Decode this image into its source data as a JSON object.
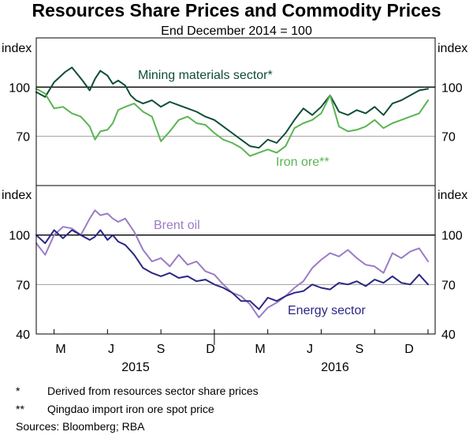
{
  "title": "Resources Share Prices and Commodity Prices",
  "subtitle": "End December 2014 = 100",
  "footnotes": [
    {
      "marker": "*",
      "text": "Derived from resources sector share prices"
    },
    {
      "marker": "**",
      "text": "Qingdao import iron ore spot price"
    }
  ],
  "sources": "Sources:  Bloomberg; RBA",
  "colors": {
    "mining": "#0f4d36",
    "iron": "#5ab552",
    "brent": "#9b7cc4",
    "energy": "#2b2783",
    "frame": "#000000",
    "grid": "#a0a0a0"
  },
  "chart_data": [
    {
      "type": "line",
      "panel": "top",
      "axis_label_left": "index",
      "axis_label_right": "index",
      "ylim": [
        40,
        130
      ],
      "yticks": [
        70,
        100
      ],
      "reference_line": 100,
      "x_unit": "months since end Dec 2014",
      "xlim": [
        2,
        24.4
      ],
      "series": [
        {
          "name": "Mining materials sector*",
          "color_key": "mining",
          "x": [
            2.0,
            2.5,
            3.0,
            3.3,
            3.6,
            4.0,
            4.3,
            4.6,
            5.0,
            5.3,
            5.6,
            6.0,
            6.3,
            6.6,
            7.0,
            7.3,
            7.6,
            8.0,
            8.5,
            9.0,
            9.5,
            10.0,
            10.5,
            11.0,
            11.5,
            12.0,
            12.5,
            13.0,
            13.5,
            14.0,
            14.5,
            15.0,
            15.5,
            16.0,
            16.5,
            17.0,
            17.5,
            18.0,
            18.5,
            19.0,
            19.5,
            20.0,
            20.5,
            21.0,
            21.5,
            22.0,
            22.5,
            23.0,
            23.5,
            24.0
          ],
          "values": [
            97,
            94,
            103,
            106,
            109,
            112,
            108,
            104,
            98,
            105,
            110,
            107,
            102,
            104,
            101,
            95,
            92,
            90,
            92,
            88,
            91,
            89,
            87,
            85,
            82,
            80,
            76,
            72,
            68,
            64,
            63,
            68,
            66,
            72,
            80,
            87,
            83,
            88,
            95,
            85,
            83,
            86,
            84,
            88,
            83,
            90,
            92,
            95,
            98,
            99
          ]
        },
        {
          "name": "Iron ore**",
          "color_key": "iron",
          "x": [
            2.0,
            2.5,
            3.0,
            3.5,
            4.0,
            4.5,
            5.0,
            5.3,
            5.6,
            6.0,
            6.3,
            6.6,
            7.0,
            7.5,
            8.0,
            8.5,
            9.0,
            9.5,
            10.0,
            10.5,
            11.0,
            11.5,
            12.0,
            12.5,
            13.0,
            13.5,
            14.0,
            14.5,
            15.0,
            15.5,
            16.0,
            16.5,
            17.0,
            17.5,
            18.0,
            18.5,
            19.0,
            19.5,
            20.0,
            20.5,
            21.0,
            21.5,
            22.0,
            22.5,
            23.0,
            23.5,
            24.0
          ],
          "values": [
            99,
            96,
            87,
            88,
            84,
            82,
            76,
            68,
            73,
            74,
            78,
            86,
            88,
            90,
            85,
            82,
            67,
            73,
            80,
            82,
            78,
            77,
            72,
            68,
            66,
            63,
            58,
            60,
            62,
            60,
            64,
            75,
            78,
            80,
            84,
            95,
            76,
            73,
            74,
            76,
            80,
            75,
            78,
            80,
            82,
            84,
            92
          ]
        }
      ],
      "annotations": [
        {
          "text": "Mining materials sector*",
          "series": "Mining materials sector*"
        },
        {
          "text": "Iron ore**",
          "series": "Iron ore**"
        }
      ]
    },
    {
      "type": "line",
      "panel": "bottom",
      "axis_label_left": "index",
      "axis_label_right": "index",
      "ylim": [
        40,
        130
      ],
      "yticks": [
        40,
        70,
        100
      ],
      "reference_line": 100,
      "x_unit": "months since end Dec 2014",
      "xlim": [
        2,
        24.4
      ],
      "xticks": [
        "M",
        "J",
        "S",
        "D",
        "M",
        "J",
        "S",
        "D"
      ],
      "year_labels": [
        "2015",
        "2016"
      ],
      "series": [
        {
          "name": "Brent oil",
          "color_key": "brent",
          "x": [
            2.0,
            2.5,
            3.0,
            3.5,
            4.0,
            4.5,
            5.0,
            5.3,
            5.6,
            6.0,
            6.3,
            6.6,
            7.0,
            7.5,
            8.0,
            8.5,
            9.0,
            9.5,
            10.0,
            10.5,
            11.0,
            11.5,
            12.0,
            12.5,
            13.0,
            13.5,
            14.0,
            14.5,
            15.0,
            15.5,
            16.0,
            16.5,
            17.0,
            17.5,
            18.0,
            18.5,
            19.0,
            19.5,
            20.0,
            20.5,
            21.0,
            21.5,
            22.0,
            22.5,
            23.0,
            23.5,
            24.0
          ],
          "values": [
            95,
            88,
            100,
            105,
            104,
            100,
            110,
            115,
            112,
            113,
            110,
            108,
            110,
            102,
            91,
            84,
            86,
            81,
            88,
            82,
            84,
            78,
            76,
            70,
            65,
            63,
            58,
            50,
            56,
            59,
            63,
            68,
            72,
            80,
            85,
            89,
            87,
            91,
            86,
            82,
            81,
            77,
            89,
            86,
            90,
            92,
            84
          ]
        },
        {
          "name": "Energy sector",
          "color_key": "energy",
          "x": [
            2.0,
            2.5,
            3.0,
            3.5,
            4.0,
            4.5,
            5.0,
            5.3,
            5.6,
            6.0,
            6.3,
            6.6,
            7.0,
            7.5,
            8.0,
            8.5,
            9.0,
            9.5,
            10.0,
            10.5,
            11.0,
            11.5,
            12.0,
            12.5,
            13.0,
            13.5,
            14.0,
            14.5,
            15.0,
            15.5,
            16.0,
            16.5,
            17.0,
            17.5,
            18.0,
            18.5,
            19.0,
            19.5,
            20.0,
            20.5,
            21.0,
            21.5,
            22.0,
            22.5,
            23.0,
            23.5,
            24.0
          ],
          "values": [
            100,
            95,
            103,
            98,
            103,
            100,
            97,
            99,
            103,
            97,
            100,
            96,
            94,
            88,
            80,
            77,
            75,
            77,
            74,
            75,
            72,
            73,
            70,
            68,
            65,
            60,
            60,
            55,
            62,
            60,
            63,
            65,
            66,
            70,
            68,
            67,
            71,
            70,
            72,
            69,
            73,
            71,
            75,
            71,
            70,
            76,
            70
          ]
        }
      ],
      "annotations": [
        {
          "text": "Brent oil",
          "series": "Brent oil"
        },
        {
          "text": "Energy sector",
          "series": "Energy sector"
        }
      ]
    }
  ]
}
